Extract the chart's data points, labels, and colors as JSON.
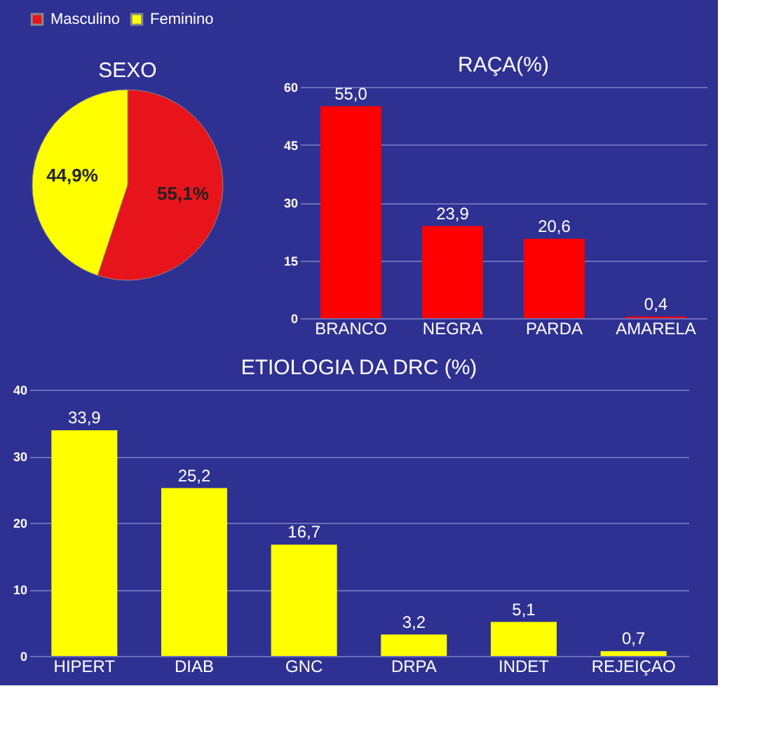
{
  "chart_data": [
    {
      "type": "pie",
      "title": "SEXO",
      "categories": [
        "Masculino",
        "Feminino"
      ],
      "values": [
        55.1,
        44.9
      ],
      "colors": [
        "#e8141b",
        "#ffff00"
      ],
      "value_labels": [
        "55,1%",
        "44,9%"
      ],
      "legend": "top"
    },
    {
      "type": "bar",
      "title": "RAÇA(%)",
      "categories": [
        "BRANCO",
        "NEGRA",
        "PARDA",
        "AMARELA"
      ],
      "values": [
        55.0,
        23.9,
        20.6,
        0.4
      ],
      "color": "#ff0000",
      "value_labels": [
        "55,0",
        "23,9",
        "20,6",
        "0,4"
      ],
      "ylim": [
        0,
        60
      ],
      "yticks": [
        0,
        15,
        30,
        45,
        60
      ],
      "grid": "y"
    },
    {
      "type": "bar",
      "title": "ETIOLOGIA DA DRC (%)",
      "categories": [
        "HIPERT",
        "DIAB",
        "GNC",
        "DRPA",
        "INDET",
        "REJEIÇAO"
      ],
      "values": [
        33.9,
        25.2,
        16.7,
        3.2,
        5.1,
        0.7
      ],
      "color": "#ffff00",
      "value_labels": [
        "33,9",
        "25,2",
        "16,7",
        "3,2",
        "5,1",
        "0,7"
      ],
      "ylim": [
        0,
        40
      ],
      "yticks": [
        0,
        10,
        20,
        30,
        40
      ],
      "grid": "y"
    }
  ]
}
